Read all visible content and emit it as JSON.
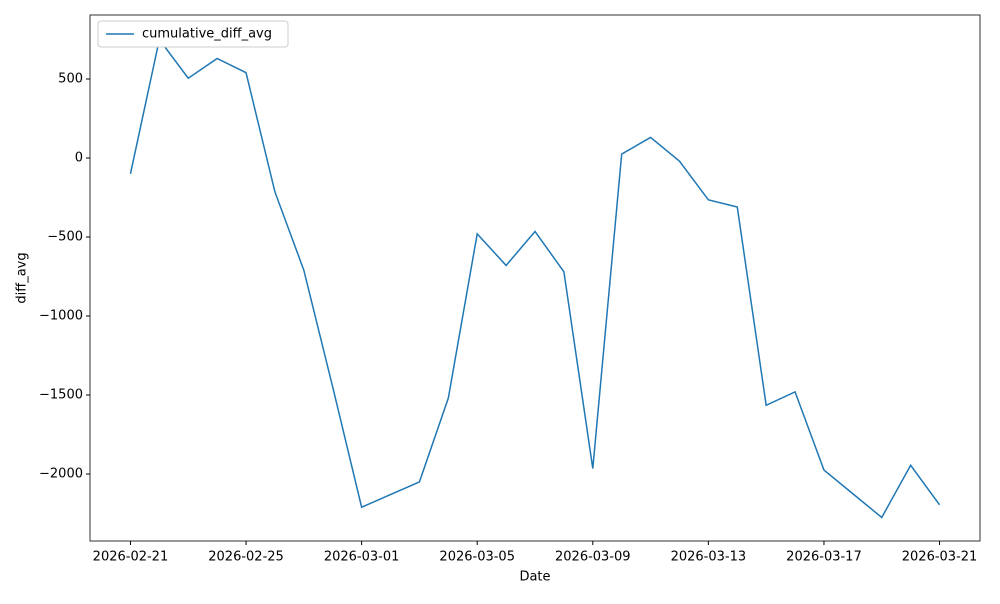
{
  "chart_data": {
    "type": "line",
    "x_label": "Date",
    "y_label": "diff_avg",
    "x": [
      "2026-02-21",
      "2026-02-22",
      "2026-02-23",
      "2026-02-24",
      "2026-02-25",
      "2026-02-26",
      "2026-02-27",
      "2026-02-28",
      "2026-03-01",
      "2026-03-02",
      "2026-03-03",
      "2026-03-04",
      "2026-03-05",
      "2026-03-06",
      "2026-03-07",
      "2026-03-08",
      "2026-03-09",
      "2026-03-10",
      "2026-03-11",
      "2026-03-12",
      "2026-03-13",
      "2026-03-14",
      "2026-03-15",
      "2026-03-16",
      "2026-03-17",
      "2026-03-18",
      "2026-03-19",
      "2026-03-20",
      "2026-03-21"
    ],
    "series": [
      {
        "name": "cumulative_diff_avg",
        "color": "#1f77b4",
        "values": [
          -100,
          750,
          505,
          630,
          540,
          -215,
          -710,
          -1450,
          -2210,
          -2130,
          -2050,
          -1520,
          -480,
          -680,
          -465,
          -720,
          -1965,
          25,
          130,
          -20,
          -265,
          -310,
          -1565,
          -1480,
          -1975,
          -2125,
          -2275,
          -1945,
          -2195
        ]
      }
    ],
    "xlim": [
      "2026-02-19T14:24",
      "2026-03-22T09:36"
    ],
    "xticks": [
      "2026-02-21",
      "2026-02-25",
      "2026-03-01",
      "2026-03-05",
      "2026-03-09",
      "2026-03-13",
      "2026-03-17",
      "2026-03-21"
    ],
    "ylim": [
      -2424,
      905
    ],
    "yticks": [
      {
        "value": -2000,
        "label": "−2000"
      },
      {
        "value": -1500,
        "label": "−1500"
      },
      {
        "value": -1000,
        "label": "−1000"
      },
      {
        "value": -500,
        "label": "−500"
      },
      0,
      500
    ],
    "grid": false,
    "legend": "upper-left"
  }
}
